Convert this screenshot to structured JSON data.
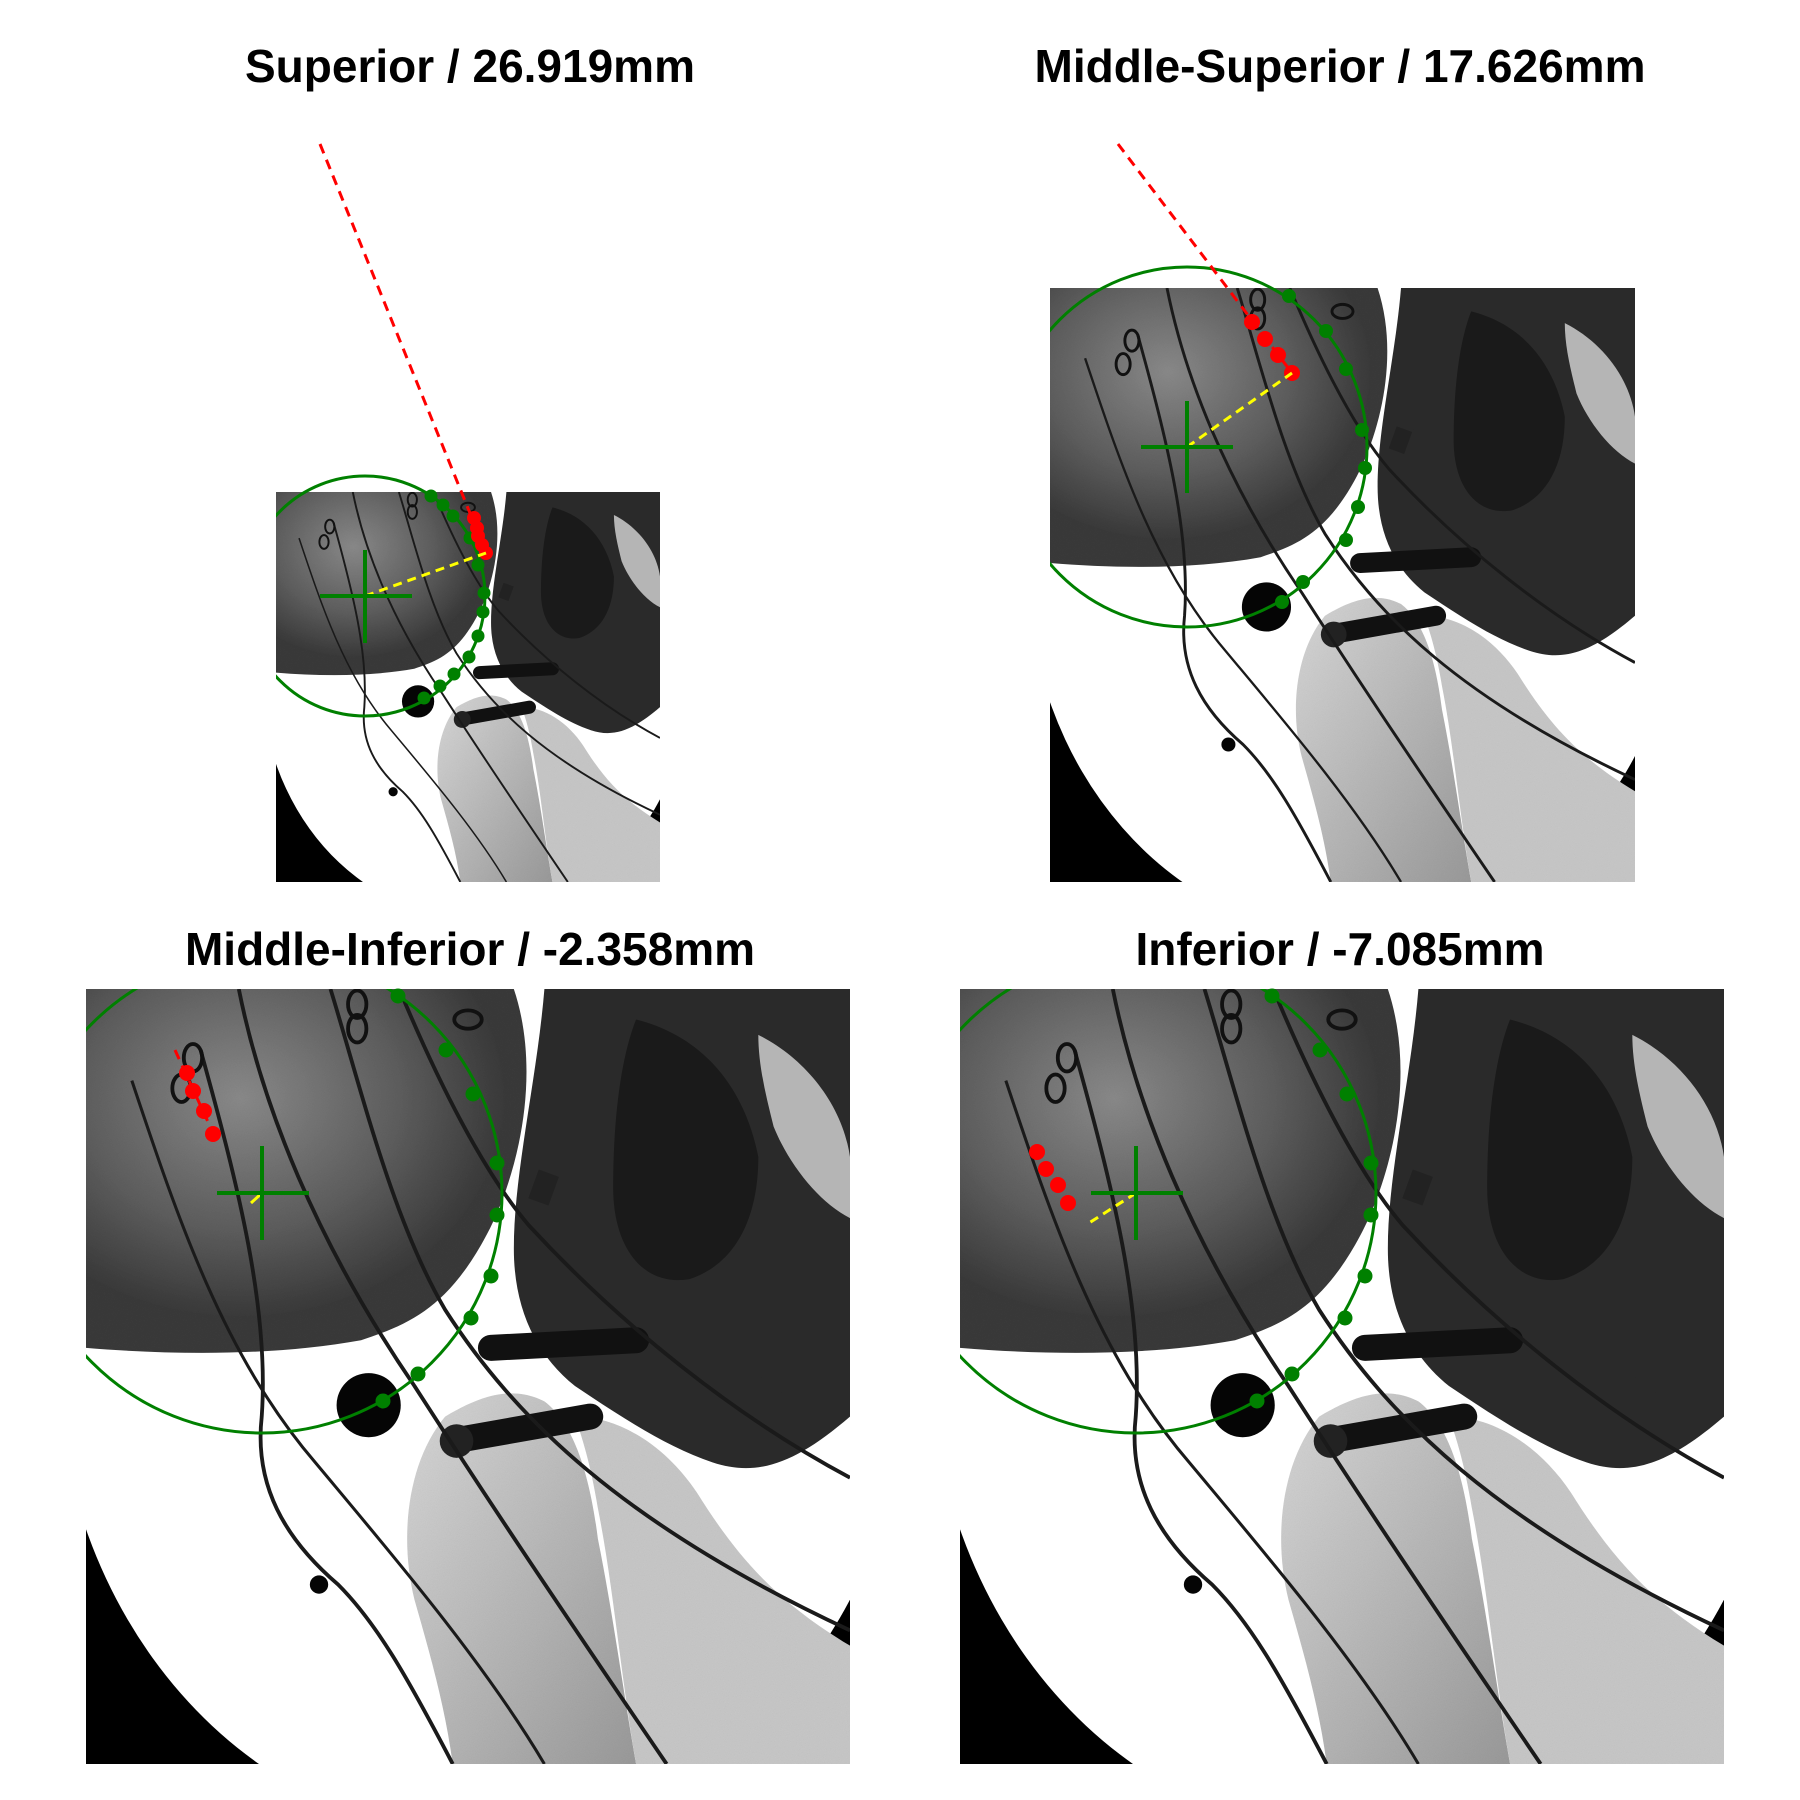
{
  "figure": {
    "panels": [
      {
        "id": "superior",
        "title": "Superior / 26.919mm"
      },
      {
        "id": "middle-superior",
        "title": "Middle-Superior / 17.626mm"
      },
      {
        "id": "middle-inferior",
        "title": "Middle-Inferior / -2.358mm"
      },
      {
        "id": "inferior",
        "title": "Inferior / -7.085mm"
      }
    ],
    "colors": {
      "fit_circle": "#008000",
      "circle_points": "#008000",
      "center_cross": "#008000",
      "edge_points": "#ff0000",
      "edge_line": "#ff0000",
      "distance_line": "#ffff00",
      "image_black": "#000000"
    }
  }
}
